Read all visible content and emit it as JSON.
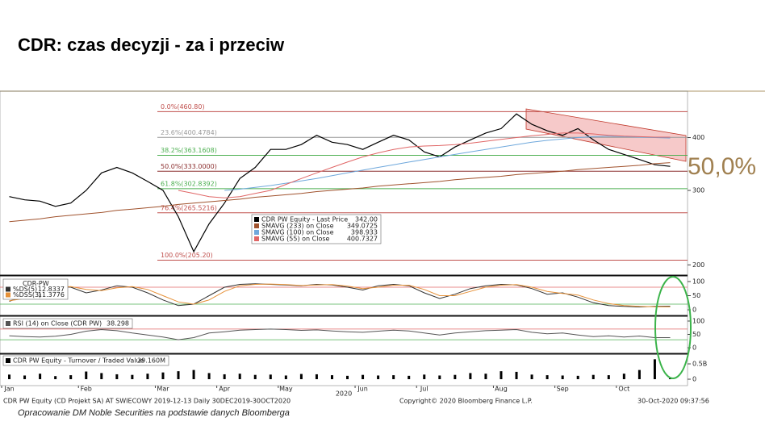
{
  "slide_title": "CDR: czas decyzji - za i przeciw",
  "caption": "Opracowanie DM Noble Securities na podstawie danych Bloomberga",
  "footer": {
    "left": "CDR PW Equity (CD Projekt SA) AT SWIECOWY 2019-12-13  Daily 30DEC2019-30OCT2020",
    "center": "Copyright© 2020 Bloomberg Finance L.P.",
    "right": "30-Oct-2020 09:37:56"
  },
  "chart_data": [
    {
      "type": "line",
      "log_scale": true,
      "ylim": [
        190,
        515
      ],
      "yticks": [
        200,
        300,
        400
      ],
      "annotation": "50,0%",
      "fib_levels": [
        {
          "label": "0.0%(460.80)",
          "value": 460.8,
          "color": "#c0504d"
        },
        {
          "label": "23.6%(400.4784)",
          "value": 400.4784,
          "color": "#999999"
        },
        {
          "label": "38.2%(363.1608)",
          "value": 363.1608,
          "color": "#4caf50"
        },
        {
          "label": "50.0%(333.0000)",
          "value": 333.0,
          "color": "#8b2e2e"
        },
        {
          "label": "61.8%(302.8392)",
          "value": 302.8392,
          "color": "#4caf50"
        },
        {
          "label": "76.4%(265.5216)",
          "value": 265.5216,
          "color": "#c0504d"
        },
        {
          "label": "100.0%(205.20)",
          "value": 205.2,
          "color": "#c0504d"
        }
      ],
      "series": [
        {
          "name": "CDR PW Equity - Last Price",
          "legend_value": "342.00",
          "color": "#000000",
          "values": [
            290,
            285,
            283,
            275,
            280,
            300,
            330,
            340,
            330,
            315,
            300,
            260,
            215,
            250,
            280,
            320,
            340,
            375,
            375,
            385,
            405,
            390,
            385,
            375,
            390,
            405,
            395,
            370,
            360,
            380,
            395,
            410,
            420,
            455,
            430,
            415,
            405,
            420,
            395,
            375,
            365,
            355,
            345,
            342
          ]
        },
        {
          "name": "SMAVG (233)  on Close",
          "legend_value": "349.0725",
          "color": "#a0522d",
          "values": [
            253,
            255,
            257,
            260,
            262,
            264,
            266,
            269,
            271,
            273,
            275,
            278,
            280,
            282,
            284,
            286,
            289,
            291,
            293,
            295,
            298,
            300,
            302,
            304,
            307,
            309,
            311,
            313,
            315,
            318,
            320,
            322,
            324,
            327,
            329,
            331,
            333,
            336,
            338,
            340,
            342,
            344,
            347,
            349
          ]
        },
        {
          "name": "SMAVG (100)  on Close",
          "legend_value": "398.933",
          "color": "#6fa8dc",
          "values": [
            null,
            null,
            null,
            null,
            null,
            null,
            null,
            null,
            null,
            null,
            null,
            null,
            null,
            null,
            300,
            302,
            305,
            308,
            312,
            316,
            320,
            325,
            330,
            335,
            340,
            345,
            350,
            355,
            360,
            365,
            370,
            375,
            380,
            385,
            390,
            394,
            397,
            400,
            402,
            403,
            402,
            401,
            400,
            399
          ]
        },
        {
          "name": "SMAVG (55)  on Close",
          "legend_value": "400.7327",
          "color": "#e06666",
          "values": [
            null,
            null,
            null,
            null,
            null,
            null,
            null,
            null,
            null,
            null,
            null,
            300,
            295,
            290,
            288,
            290,
            295,
            300,
            310,
            320,
            330,
            340,
            350,
            360,
            368,
            375,
            380,
            382,
            383,
            385,
            388,
            392,
            396,
            400,
            404,
            407,
            410,
            410,
            408,
            405,
            403,
            402,
            401,
            401
          ]
        }
      ]
    },
    {
      "type": "line",
      "title": "CDR-PW",
      "ylim": [
        -17,
        117
      ],
      "yticks": [
        0,
        50,
        100
      ],
      "ref_lines": [
        {
          "value": 80,
          "color": "#e06666"
        },
        {
          "value": 20,
          "color": "#4caf50"
        }
      ],
      "series": [
        {
          "name": "%DS(5)",
          "legend_value": "12.8337",
          "color": "#333333",
          "values": [
            30,
            50,
            75,
            85,
            80,
            60,
            70,
            85,
            80,
            60,
            35,
            15,
            20,
            50,
            80,
            90,
            92,
            90,
            88,
            85,
            90,
            88,
            80,
            70,
            85,
            90,
            85,
            60,
            40,
            55,
            75,
            85,
            90,
            88,
            75,
            55,
            60,
            45,
            25,
            15,
            12,
            10,
            12,
            13
          ]
        },
        {
          "name": "%DSS(3)",
          "legend_value": "11.3776",
          "color": "#e69138",
          "values": [
            32,
            40,
            62,
            80,
            82,
            72,
            68,
            78,
            82,
            72,
            50,
            28,
            20,
            35,
            65,
            85,
            90,
            91,
            89,
            86,
            88,
            89,
            84,
            75,
            80,
            87,
            87,
            72,
            50,
            50,
            65,
            80,
            87,
            89,
            80,
            65,
            58,
            52,
            35,
            22,
            15,
            12,
            11,
            11
          ]
        }
      ]
    },
    {
      "type": "line",
      "ylim": [
        -18,
        115
      ],
      "yticks": [
        0,
        50,
        100
      ],
      "ref_lines": [
        {
          "value": 70,
          "color": "#e06666"
        },
        {
          "value": 30,
          "color": "#4caf50"
        }
      ],
      "series": [
        {
          "name": "RSI (14)  on Close (CDR PW)",
          "legend_value": "38.298",
          "color": "#555555",
          "values": [
            45,
            42,
            40,
            43,
            50,
            62,
            68,
            64,
            55,
            48,
            40,
            30,
            38,
            55,
            60,
            66,
            68,
            70,
            68,
            65,
            67,
            63,
            60,
            58,
            62,
            66,
            63,
            55,
            48,
            55,
            60,
            64,
            66,
            68,
            58,
            52,
            55,
            48,
            42,
            45,
            40,
            44,
            38,
            38
          ]
        }
      ]
    },
    {
      "type": "bar",
      "ylim": [
        -210000000,
        790000000
      ],
      "yticks": [
        0,
        {
          "value": 500000000,
          "label": "0.5B"
        }
      ],
      "x_label": "2020",
      "categories": [
        "Jan",
        null,
        null,
        null,
        null,
        "Feb",
        null,
        null,
        null,
        null,
        "Mar",
        null,
        null,
        null,
        "Apr",
        null,
        null,
        null,
        "May",
        null,
        null,
        null,
        null,
        "Jun",
        null,
        null,
        null,
        "Jul",
        null,
        null,
        null,
        null,
        "Aug",
        null,
        null,
        null,
        "Sep",
        null,
        null,
        null,
        "Oct",
        null,
        null,
        null
      ],
      "series": [
        {
          "name": "CDR PW Equity - Turnover / Traded Value",
          "legend_value": "29.160M",
          "color": "#000000",
          "values": [
            150000000,
            120000000,
            180000000,
            100000000,
            130000000,
            250000000,
            200000000,
            160000000,
            140000000,
            180000000,
            220000000,
            260000000,
            300000000,
            200000000,
            160000000,
            180000000,
            140000000,
            150000000,
            120000000,
            170000000,
            160000000,
            130000000,
            110000000,
            140000000,
            120000000,
            130000000,
            110000000,
            150000000,
            120000000,
            140000000,
            200000000,
            180000000,
            260000000,
            240000000,
            150000000,
            130000000,
            120000000,
            110000000,
            140000000,
            130000000,
            180000000,
            300000000,
            650000000,
            29160000
          ]
        }
      ]
    }
  ]
}
